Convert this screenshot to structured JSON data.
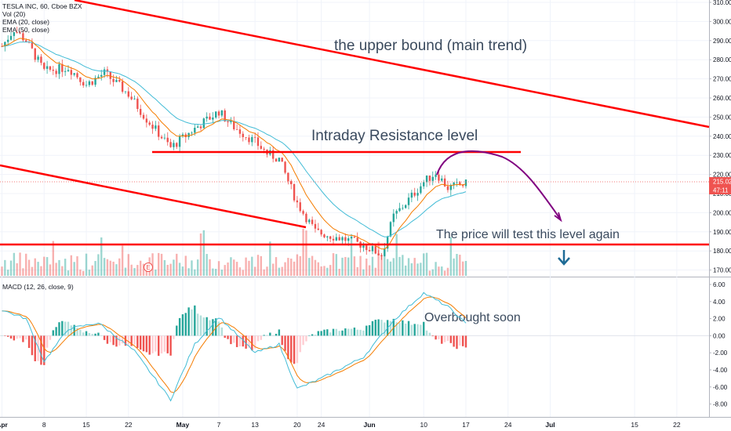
{
  "header": {
    "symbol_line": "TESLA INC, 60, Cboe BZX",
    "vol_line": "Vol (20)",
    "ema20_line": "EMA (20, close)",
    "ema50_line": "EMA (50, close)",
    "macd_line": "MACD (12, 26, close, 9)"
  },
  "annotations": {
    "upper_bound": "the upper bound (main trend)",
    "resistance": "Intraday Resistance level",
    "test_level": "The price will test this level again",
    "overbought": "Overbought soon",
    "earnings_marker": "E"
  },
  "price_badges": {
    "last_price": "215.02",
    "countdown": "47:11"
  },
  "colors": {
    "up": "#26a69a",
    "down": "#ef5350",
    "trendline": "#ff0000",
    "arrow_curve": "#800080",
    "down_arrow": "#1e6b96",
    "ema20": "#f57c00",
    "ema50": "#42bcd6",
    "macd": "#42bcd6",
    "signal": "#f57c00"
  },
  "chart_data": [
    {
      "type": "candlestick",
      "title": "TESLA INC, 60, Cboe BZX",
      "x_tick_labels": [
        "Apr",
        "8",
        "15",
        "22",
        "May",
        "7",
        "13",
        "20",
        "24",
        "Jun",
        "10",
        "17",
        "24",
        "Jul",
        "15",
        "22"
      ],
      "y_tick_labels": [
        "310.00",
        "300.00",
        "290.00",
        "280.00",
        "270.00",
        "260.00",
        "250.00",
        "240.00",
        "230.00",
        "220.00",
        "210.00",
        "200.00",
        "190.00",
        "180.00",
        "170.00"
      ],
      "ylim": [
        166,
        311
      ],
      "close_keypoints": [
        {
          "date": "Apr 1",
          "close": 287
        },
        {
          "date": "Apr 3",
          "close": 296
        },
        {
          "date": "Apr 5",
          "close": 290
        },
        {
          "date": "Apr 8",
          "close": 274
        },
        {
          "date": "Apr 12",
          "close": 276
        },
        {
          "date": "Apr 15",
          "close": 267
        },
        {
          "date": "Apr 18",
          "close": 273
        },
        {
          "date": "Apr 22",
          "close": 262
        },
        {
          "date": "Apr 25",
          "close": 249
        },
        {
          "date": "Apr 29",
          "close": 234
        },
        {
          "date": "May 3",
          "close": 244
        },
        {
          "date": "May 7",
          "close": 253
        },
        {
          "date": "May 9",
          "close": 246
        },
        {
          "date": "May 13",
          "close": 237
        },
        {
          "date": "May 15",
          "close": 231
        },
        {
          "date": "May 17",
          "close": 228
        },
        {
          "date": "May 20",
          "close": 205
        },
        {
          "date": "May 23",
          "close": 190
        },
        {
          "date": "May 28",
          "close": 186
        },
        {
          "date": "May 31",
          "close": 183
        },
        {
          "date": "Jun 3",
          "close": 178
        },
        {
          "date": "Jun 5",
          "close": 198
        },
        {
          "date": "Jun 7",
          "close": 205
        },
        {
          "date": "Jun 10",
          "close": 216
        },
        {
          "date": "Jun 12",
          "close": 221
        },
        {
          "date": "Jun 14",
          "close": 213
        },
        {
          "date": "Jun 17",
          "close": 215
        }
      ],
      "last_price": 215.02,
      "levels": [
        {
          "name": "Intraday Resistance level",
          "price": 230.5
        },
        {
          "name": "The price will test this level again",
          "price": 182.5
        }
      ]
    },
    {
      "type": "bar",
      "title": "MACD (12, 26, close, 9)",
      "y_tick_labels": [
        "6.00",
        "4.00",
        "2.00",
        "0.00",
        "-2.00",
        "-4.00",
        "-6.00",
        "-8.00"
      ],
      "ylim": [
        -9,
        6.5
      ],
      "macd_keypoints": [
        {
          "date": "Apr 1",
          "macd": 3.0
        },
        {
          "date": "Apr 5",
          "macd": 2.0
        },
        {
          "date": "Apr 8",
          "macd": -3.0
        },
        {
          "date": "Apr 12",
          "macd": 0.8
        },
        {
          "date": "Apr 17",
          "macd": 1.5
        },
        {
          "date": "Apr 23",
          "macd": -1.8
        },
        {
          "date": "Apr 29",
          "macd": -7.5
        },
        {
          "date": "May 3",
          "macd": -1.0
        },
        {
          "date": "May 7",
          "macd": 2.2
        },
        {
          "date": "May 13",
          "macd": -2.0
        },
        {
          "date": "May 17",
          "macd": -1.0
        },
        {
          "date": "May 20",
          "macd": -6.2
        },
        {
          "date": "May 24",
          "macd": -5.0
        },
        {
          "date": "May 31",
          "macd": -2.5
        },
        {
          "date": "Jun 5",
          "macd": 1.8
        },
        {
          "date": "Jun 10",
          "macd": 5.0
        },
        {
          "date": "Jun 14",
          "macd": 3.4
        },
        {
          "date": "Jun 17",
          "macd": 1.4
        }
      ]
    }
  ]
}
